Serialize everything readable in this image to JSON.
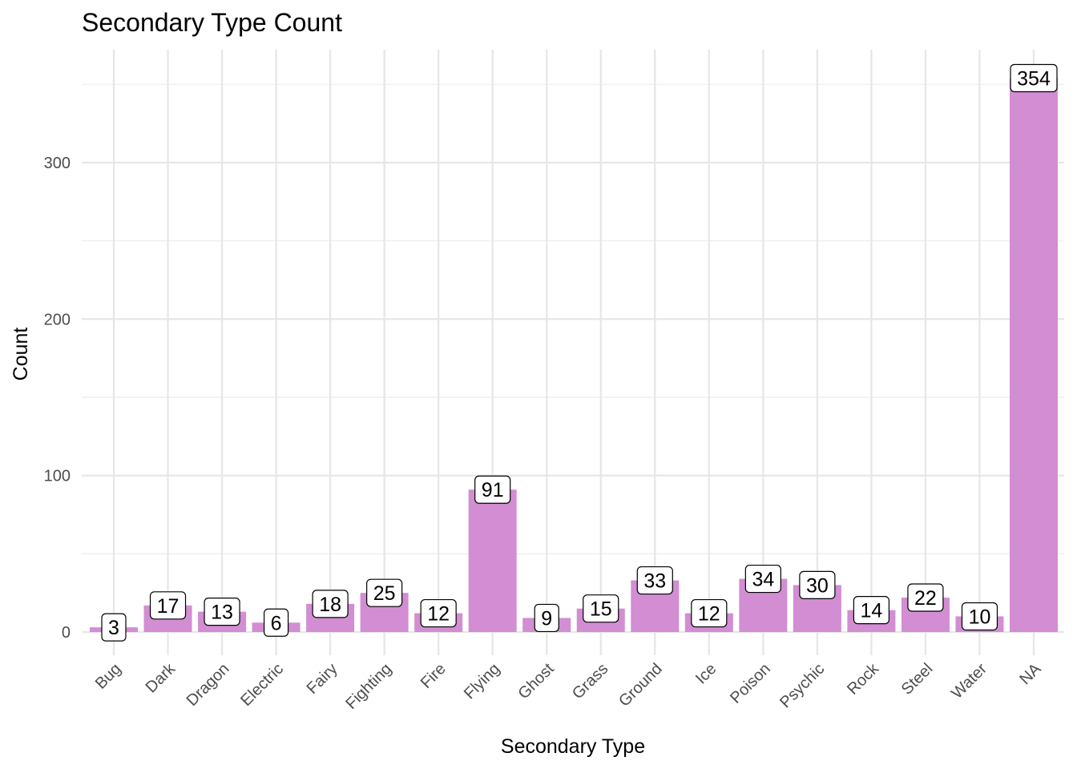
{
  "chart_data": {
    "type": "bar",
    "title": "Secondary Type Count",
    "xlabel": "Secondary Type",
    "ylabel": "Count",
    "categories": [
      "Bug",
      "Dark",
      "Dragon",
      "Electric",
      "Fairy",
      "Fighting",
      "Fire",
      "Flying",
      "Ghost",
      "Grass",
      "Ground",
      "Ice",
      "Poison",
      "Psychic",
      "Rock",
      "Steel",
      "Water",
      "NA"
    ],
    "values": [
      3,
      17,
      13,
      6,
      18,
      25,
      12,
      91,
      9,
      15,
      33,
      12,
      34,
      30,
      14,
      22,
      10,
      354
    ],
    "ylim": [
      -15,
      370
    ],
    "yticks": [
      0,
      100,
      200,
      300
    ],
    "grid": true,
    "bar_color": "#d28dd3"
  }
}
